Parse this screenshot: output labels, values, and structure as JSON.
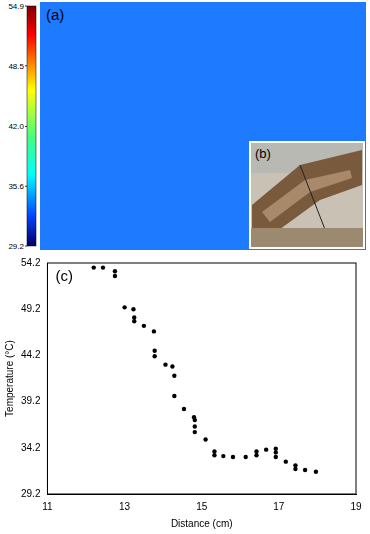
{
  "panels": {
    "a": {
      "label": "(a)",
      "colorbar": {
        "range": [
          29.2,
          54.9
        ],
        "ticks": [
          54.9,
          48.5,
          {
            "value": 42,
            "label": "42.0"
          },
          35.6,
          29.2
        ]
      }
    },
    "b": {
      "label": "(b)"
    }
  },
  "chart_data": {
    "type": "scatter",
    "panel_label": "(c)",
    "x_label": "Distance (cm)",
    "y_label": "Temperature (°C)",
    "x": [
      12.2,
      12.44,
      12.75,
      12.75,
      13.0,
      13.23,
      13.25,
      13.25,
      13.5,
      13.76,
      13.78,
      13.78,
      14.06,
      14.24,
      14.29,
      14.29,
      14.54,
      14.8,
      14.82,
      14.82,
      14.82,
      15.1,
      15.33,
      15.33,
      15.56,
      15.81,
      16.14,
      16.42,
      16.42,
      16.67,
      16.92,
      16.92,
      16.92,
      17.18,
      17.43,
      17.43,
      17.68,
      17.96
    ],
    "values": [
      53.7,
      53.7,
      53.3,
      52.8,
      49.4,
      49.2,
      48.3,
      47.9,
      47.4,
      46.8,
      44.7,
      44.1,
      43.2,
      43.0,
      42.0,
      39.8,
      38.4,
      37.5,
      37.2,
      36.5,
      35.9,
      35.1,
      33.8,
      33.4,
      33.3,
      33.2,
      33.2,
      33.8,
      33.4,
      34.0,
      34.1,
      33.7,
      33.2,
      32.7,
      32.3,
      31.9,
      31.8,
      31.6
    ],
    "color": "#000000",
    "marker": "circle",
    "xlim": [
      11,
      19
    ],
    "ylim": [
      29.2,
      54.2
    ],
    "xticks": [
      11,
      13,
      15,
      17,
      19
    ],
    "yticks": [
      29.2,
      34.2,
      39.2,
      44.2,
      49.2,
      54.2
    ],
    "grid": false
  }
}
